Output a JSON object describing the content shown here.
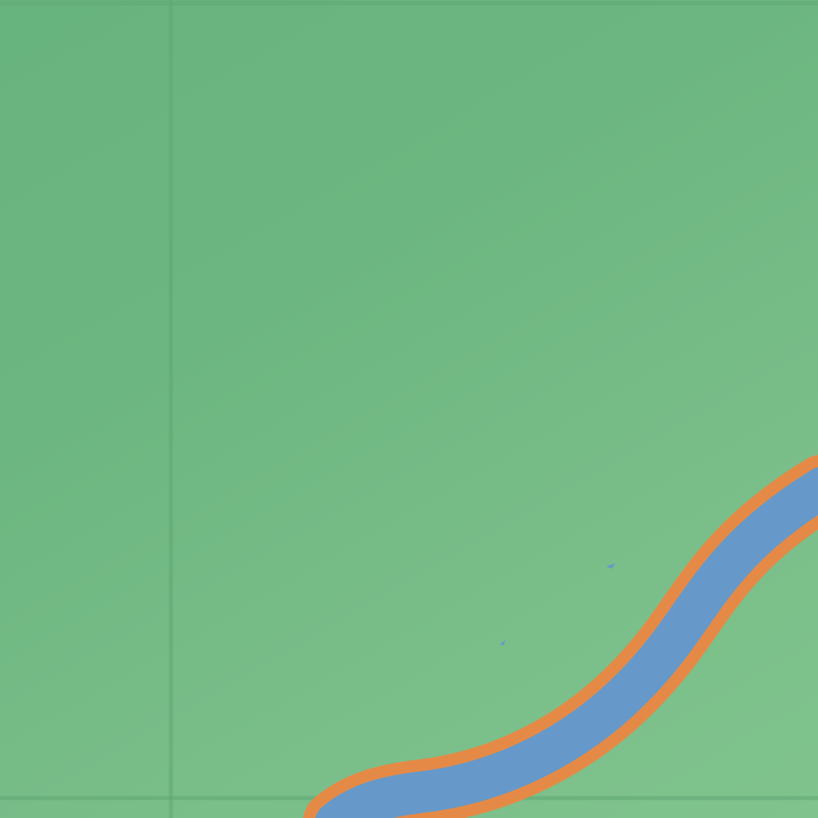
{
  "map": {
    "land_color": "#6db682",
    "grid_line_color": "#5fa673",
    "road_casing_color": "#e58a46",
    "road_fill_color": "#6699c9"
  }
}
